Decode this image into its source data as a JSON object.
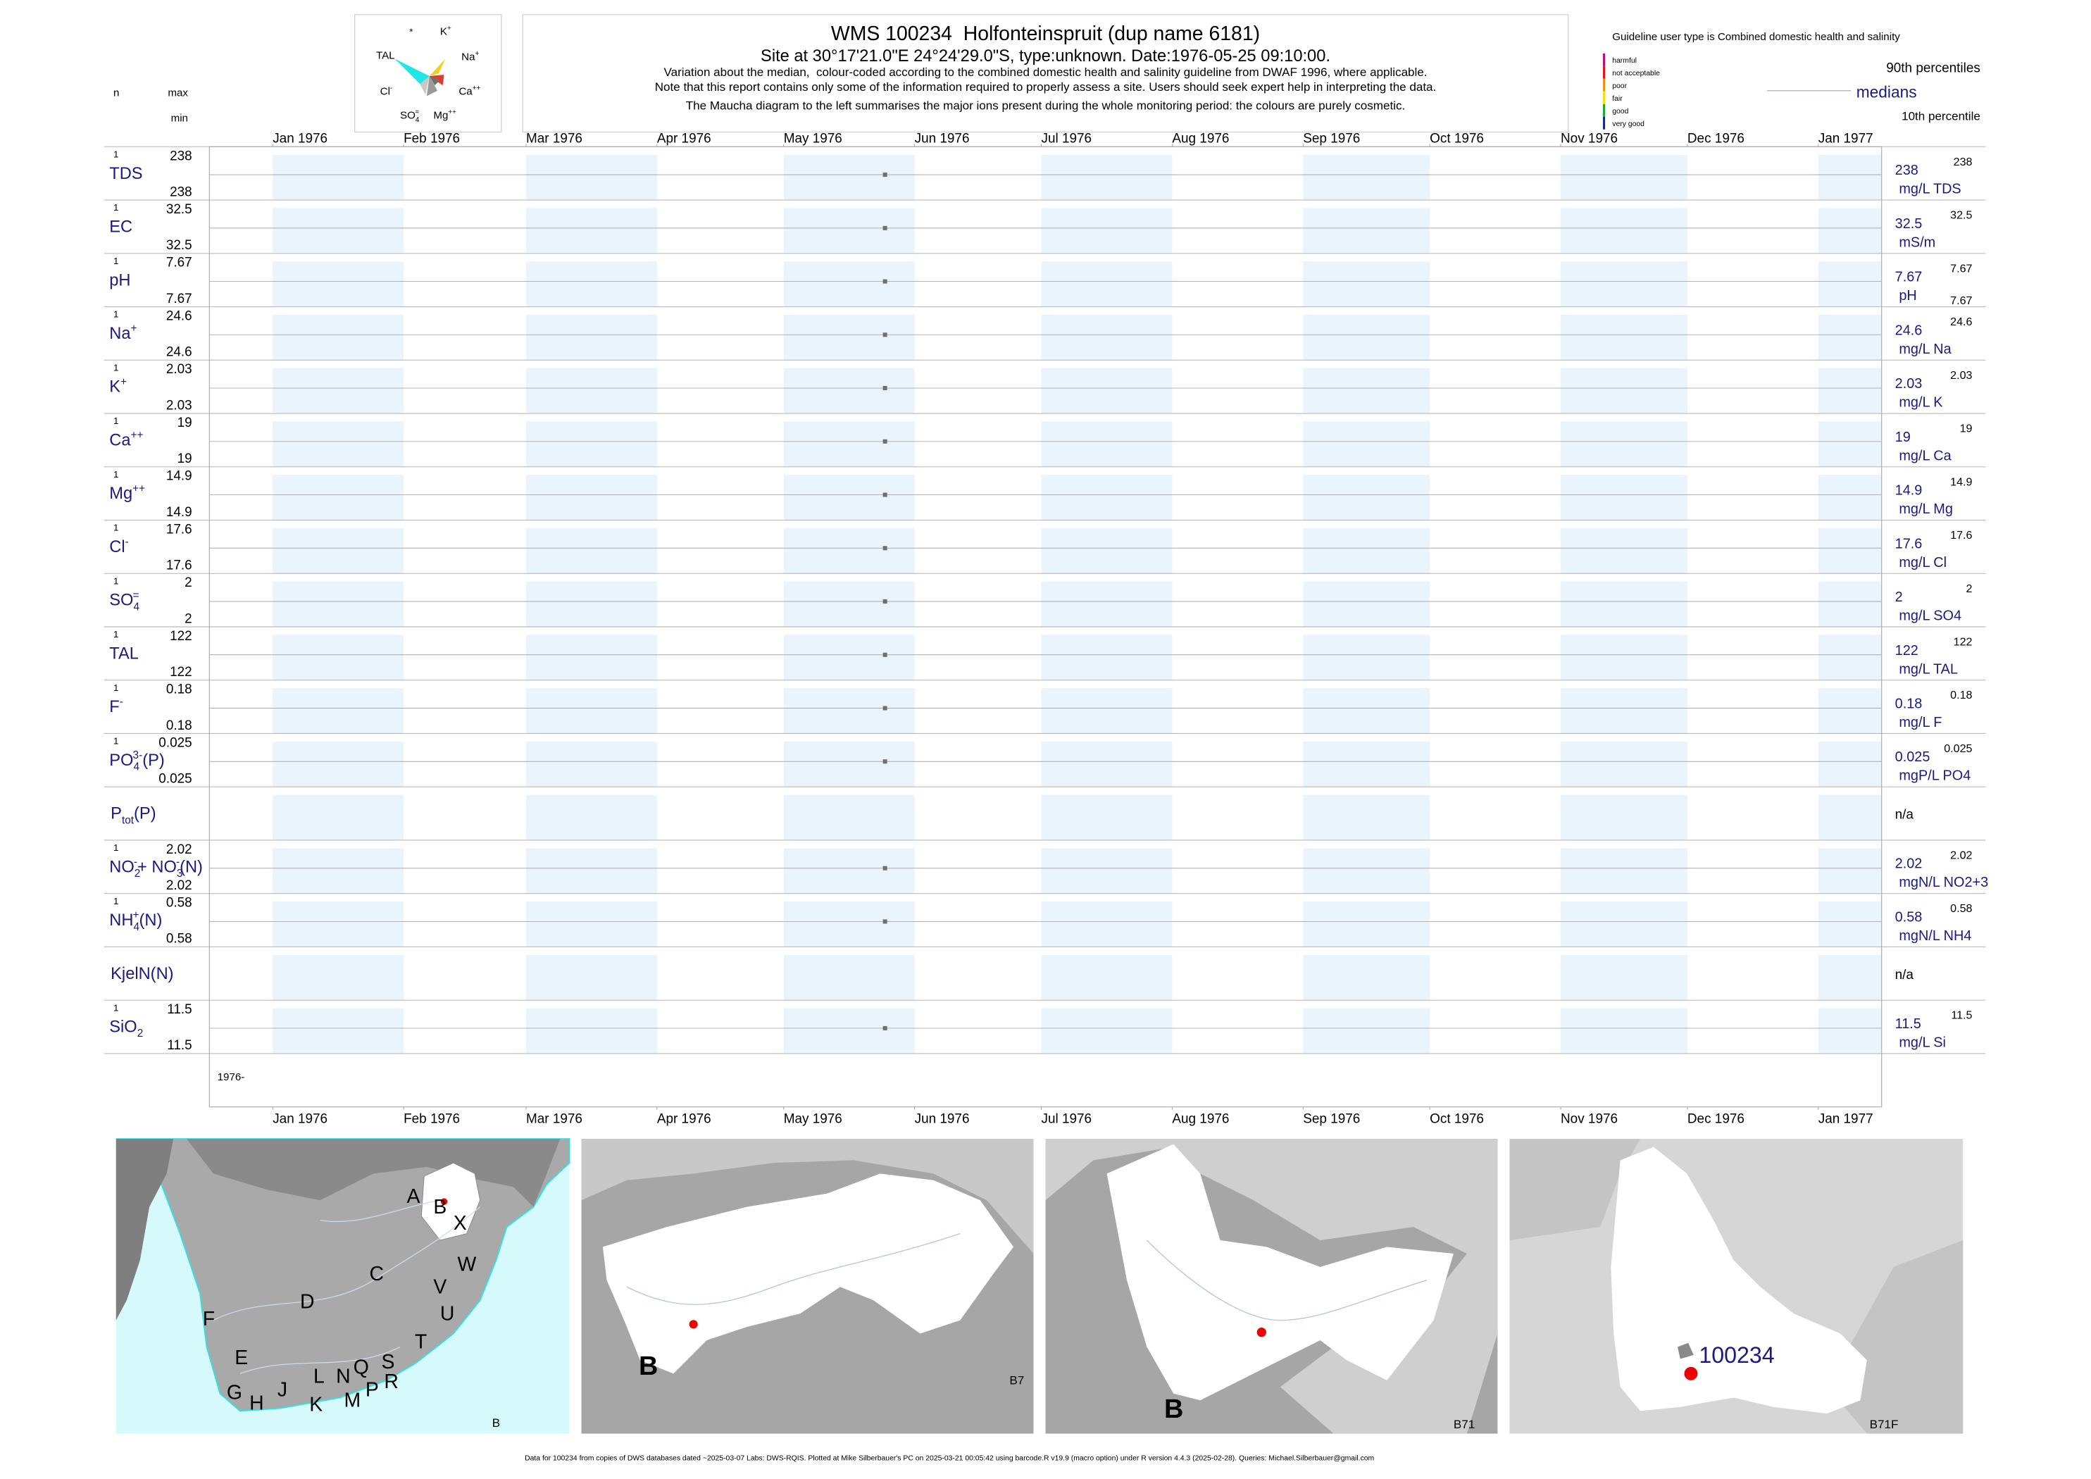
{
  "header": {
    "title": "WMS 100234  Holfonteinspruit (dup name 6181)",
    "subtitle": "Site at 30°17'21.0\"E 24°24'29.0\"S, type:unknown. Date:1976-05-25 09:10:00.",
    "notes": [
      "Variation about the median,  colour-coded according to the combined domestic health and salinity guideline from DWAF 1996, where applicable.",
      "Note that this report contains only some of the information required to properly assess a site. Users should seek expert help in interpreting the data.",
      "The Maucha diagram to the left summarises the major ions present during the whole monitoring period: the colours are purely cosmetic."
    ]
  },
  "left_header": {
    "n": "n",
    "max": "max",
    "min": "min"
  },
  "maucha": {
    "star": "*",
    "labels": [
      [
        {
          "t": "K"
        },
        {
          "sup": "+"
        }
      ],
      [
        {
          "t": "TAL"
        }
      ],
      [
        {
          "t": "Na"
        },
        {
          "sup": "+"
        }
      ],
      [
        {
          "t": "Cl"
        },
        {
          "sup": "-"
        }
      ],
      [
        {
          "t": "Ca"
        },
        {
          "sup": "++"
        }
      ],
      [
        {
          "t": "SO"
        },
        {
          "sub": "4"
        },
        {
          "sup": "="
        }
      ],
      [
        {
          "t": "Mg"
        },
        {
          "sup": "++"
        }
      ]
    ]
  },
  "legend": {
    "guideline": "Guideline user type is Combined domestic health and salinity",
    "classes": [
      {
        "label": "harmful",
        "color": "#b0127f"
      },
      {
        "label": "not acceptable",
        "color": "#e8141c"
      },
      {
        "label": "poor",
        "color": "#f39019"
      },
      {
        "label": "fair",
        "color": "#f2e20f"
      },
      {
        "label": "good",
        "color": "#26a536"
      },
      {
        "label": "very good",
        "color": "#1b2a8f"
      }
    ],
    "p90": "90th percentiles",
    "median": "medians",
    "p10": "10th percentile"
  },
  "chart_data": {
    "type": "strip",
    "start_label": "1976-",
    "x": [
      "1976-05-25"
    ],
    "xlim": [
      "1975-12-17",
      "1977-01-16"
    ],
    "xticks": [
      {
        "value": "1976-01-01",
        "label": "Jan 1976"
      },
      {
        "value": "1976-02-01",
        "label": "Feb 1976"
      },
      {
        "value": "1976-03-01",
        "label": "Mar 1976"
      },
      {
        "value": "1976-04-01",
        "label": "Apr 1976"
      },
      {
        "value": "1976-05-01",
        "label": "May 1976"
      },
      {
        "value": "1976-06-01",
        "label": "Jun 1976"
      },
      {
        "value": "1976-07-01",
        "label": "Jul 1976"
      },
      {
        "value": "1976-08-01",
        "label": "Aug 1976"
      },
      {
        "value": "1976-09-01",
        "label": "Sep 1976"
      },
      {
        "value": "1976-10-01",
        "label": "Oct 1976"
      },
      {
        "value": "1976-11-01",
        "label": "Nov 1976"
      },
      {
        "value": "1976-12-01",
        "label": "Dec 1976"
      },
      {
        "value": "1977-01-01",
        "label": "Jan 1977"
      }
    ],
    "point_color": "#707070",
    "shade_color": "#eaf4fd",
    "rows": [
      {
        "label": [
          {
            "t": "TDS"
          }
        ],
        "n": 1,
        "max": 238,
        "min": 238,
        "median": 238,
        "p90": 238,
        "unit": "mg/L TDS"
      },
      {
        "label": [
          {
            "t": "EC"
          }
        ],
        "n": 1,
        "max": 32.5,
        "min": 32.5,
        "median": 32.5,
        "p90": 32.5,
        "unit": "mS/m"
      },
      {
        "label": [
          {
            "t": "pH"
          }
        ],
        "n": 1,
        "max": 7.67,
        "min": 7.67,
        "median": 7.67,
        "p90": 7.67,
        "p10": 7.67,
        "unit": "pH"
      },
      {
        "label": [
          {
            "t": "Na"
          },
          {
            "sup": "+"
          }
        ],
        "n": 1,
        "max": 24.6,
        "min": 24.6,
        "median": 24.6,
        "p90": 24.6,
        "unit": "mg/L Na"
      },
      {
        "label": [
          {
            "t": "K"
          },
          {
            "sup": "+"
          }
        ],
        "n": 1,
        "max": 2.03,
        "min": 2.03,
        "median": 2.03,
        "p90": 2.03,
        "unit": "mg/L K"
      },
      {
        "label": [
          {
            "t": "Ca"
          },
          {
            "sup": "++"
          }
        ],
        "n": 1,
        "max": 19,
        "min": 19,
        "median": 19,
        "p90": 19,
        "unit": "mg/L Ca"
      },
      {
        "label": [
          {
            "t": "Mg"
          },
          {
            "sup": "++"
          }
        ],
        "n": 1,
        "max": 14.9,
        "min": 14.9,
        "median": 14.9,
        "p90": 14.9,
        "unit": "mg/L Mg"
      },
      {
        "label": [
          {
            "t": "Cl"
          },
          {
            "sup": "-"
          }
        ],
        "n": 1,
        "max": 17.6,
        "min": 17.6,
        "median": 17.6,
        "p90": 17.6,
        "unit": "mg/L Cl"
      },
      {
        "label": [
          {
            "t": "SO"
          },
          {
            "sub": "4"
          },
          {
            "sup": "="
          }
        ],
        "n": 1,
        "max": 2,
        "min": 2,
        "median": 2,
        "p90": 2,
        "unit": "mg/L SO4"
      },
      {
        "label": [
          {
            "t": "TAL"
          }
        ],
        "n": 1,
        "max": 122,
        "min": 122,
        "median": 122,
        "p90": 122,
        "unit": "mg/L TAL"
      },
      {
        "label": [
          {
            "t": "F"
          },
          {
            "sup": "-"
          }
        ],
        "n": 1,
        "max": 0.18,
        "min": 0.18,
        "median": 0.18,
        "p90": 0.18,
        "unit": "mg/L F"
      },
      {
        "label": [
          {
            "t": "PO"
          },
          {
            "sub": "4"
          },
          {
            "sup": "3-"
          },
          {
            "t": "(P)"
          }
        ],
        "n": 1,
        "max": 0.025,
        "min": 0.025,
        "median": 0.025,
        "p90": 0.025,
        "unit": "mgP/L PO4"
      },
      {
        "label": [
          {
            "t": "P"
          },
          {
            "sub": "tot"
          },
          {
            "t": "(P)"
          }
        ],
        "na": "n/a"
      },
      {
        "label": [
          {
            "t": "NO"
          },
          {
            "sub": "2"
          },
          {
            "sup": "-"
          },
          {
            "t": "+ NO"
          },
          {
            "sub": "3"
          },
          {
            "sup": "-"
          },
          {
            "t": "(N)"
          }
        ],
        "n": 1,
        "max": 2.02,
        "min": 2.02,
        "median": 2.02,
        "p90": 2.02,
        "unit": "mgN/L NO2+3"
      },
      {
        "label": [
          {
            "t": "NH"
          },
          {
            "sub": "4"
          },
          {
            "sup": "+"
          },
          {
            "t": "(N)"
          }
        ],
        "n": 1,
        "max": 0.58,
        "min": 0.58,
        "median": 0.58,
        "p90": 0.58,
        "unit": "mgN/L NH4"
      },
      {
        "label": [
          {
            "t": "KjelN(N)"
          }
        ],
        "na": "n/a"
      },
      {
        "label": [
          {
            "t": "SiO"
          },
          {
            "sub": "2"
          }
        ],
        "n": 1,
        "max": 11.5,
        "min": 11.5,
        "median": 11.5,
        "p90": 11.5,
        "unit": "mg/L Si"
      }
    ]
  },
  "maps": [
    {
      "corner": "B",
      "labels": [
        "A",
        "B",
        "X",
        "C",
        "W",
        "D",
        "V",
        "U",
        "F",
        "T",
        "E",
        "S",
        "G",
        "H",
        "J",
        "K",
        "L",
        "M",
        "N",
        "P",
        "Q",
        "R"
      ]
    },
    {
      "corner": "B7",
      "region": "B"
    },
    {
      "corner": "B71",
      "region": "B"
    },
    {
      "corner": "B71F",
      "site": "100234"
    }
  ],
  "footer": "Data for 100234 from copies of DWS databases dated ~2025-03-07 Labs: DWS-RQIS. Plotted at Mike Silberbauer's PC on 2025-03-21 00:05:42 using barcode.R v19.9 (macro option) under R version 4.4.3 (2025-02-28). Queries: Michael.Silberbauer@gmail.com"
}
